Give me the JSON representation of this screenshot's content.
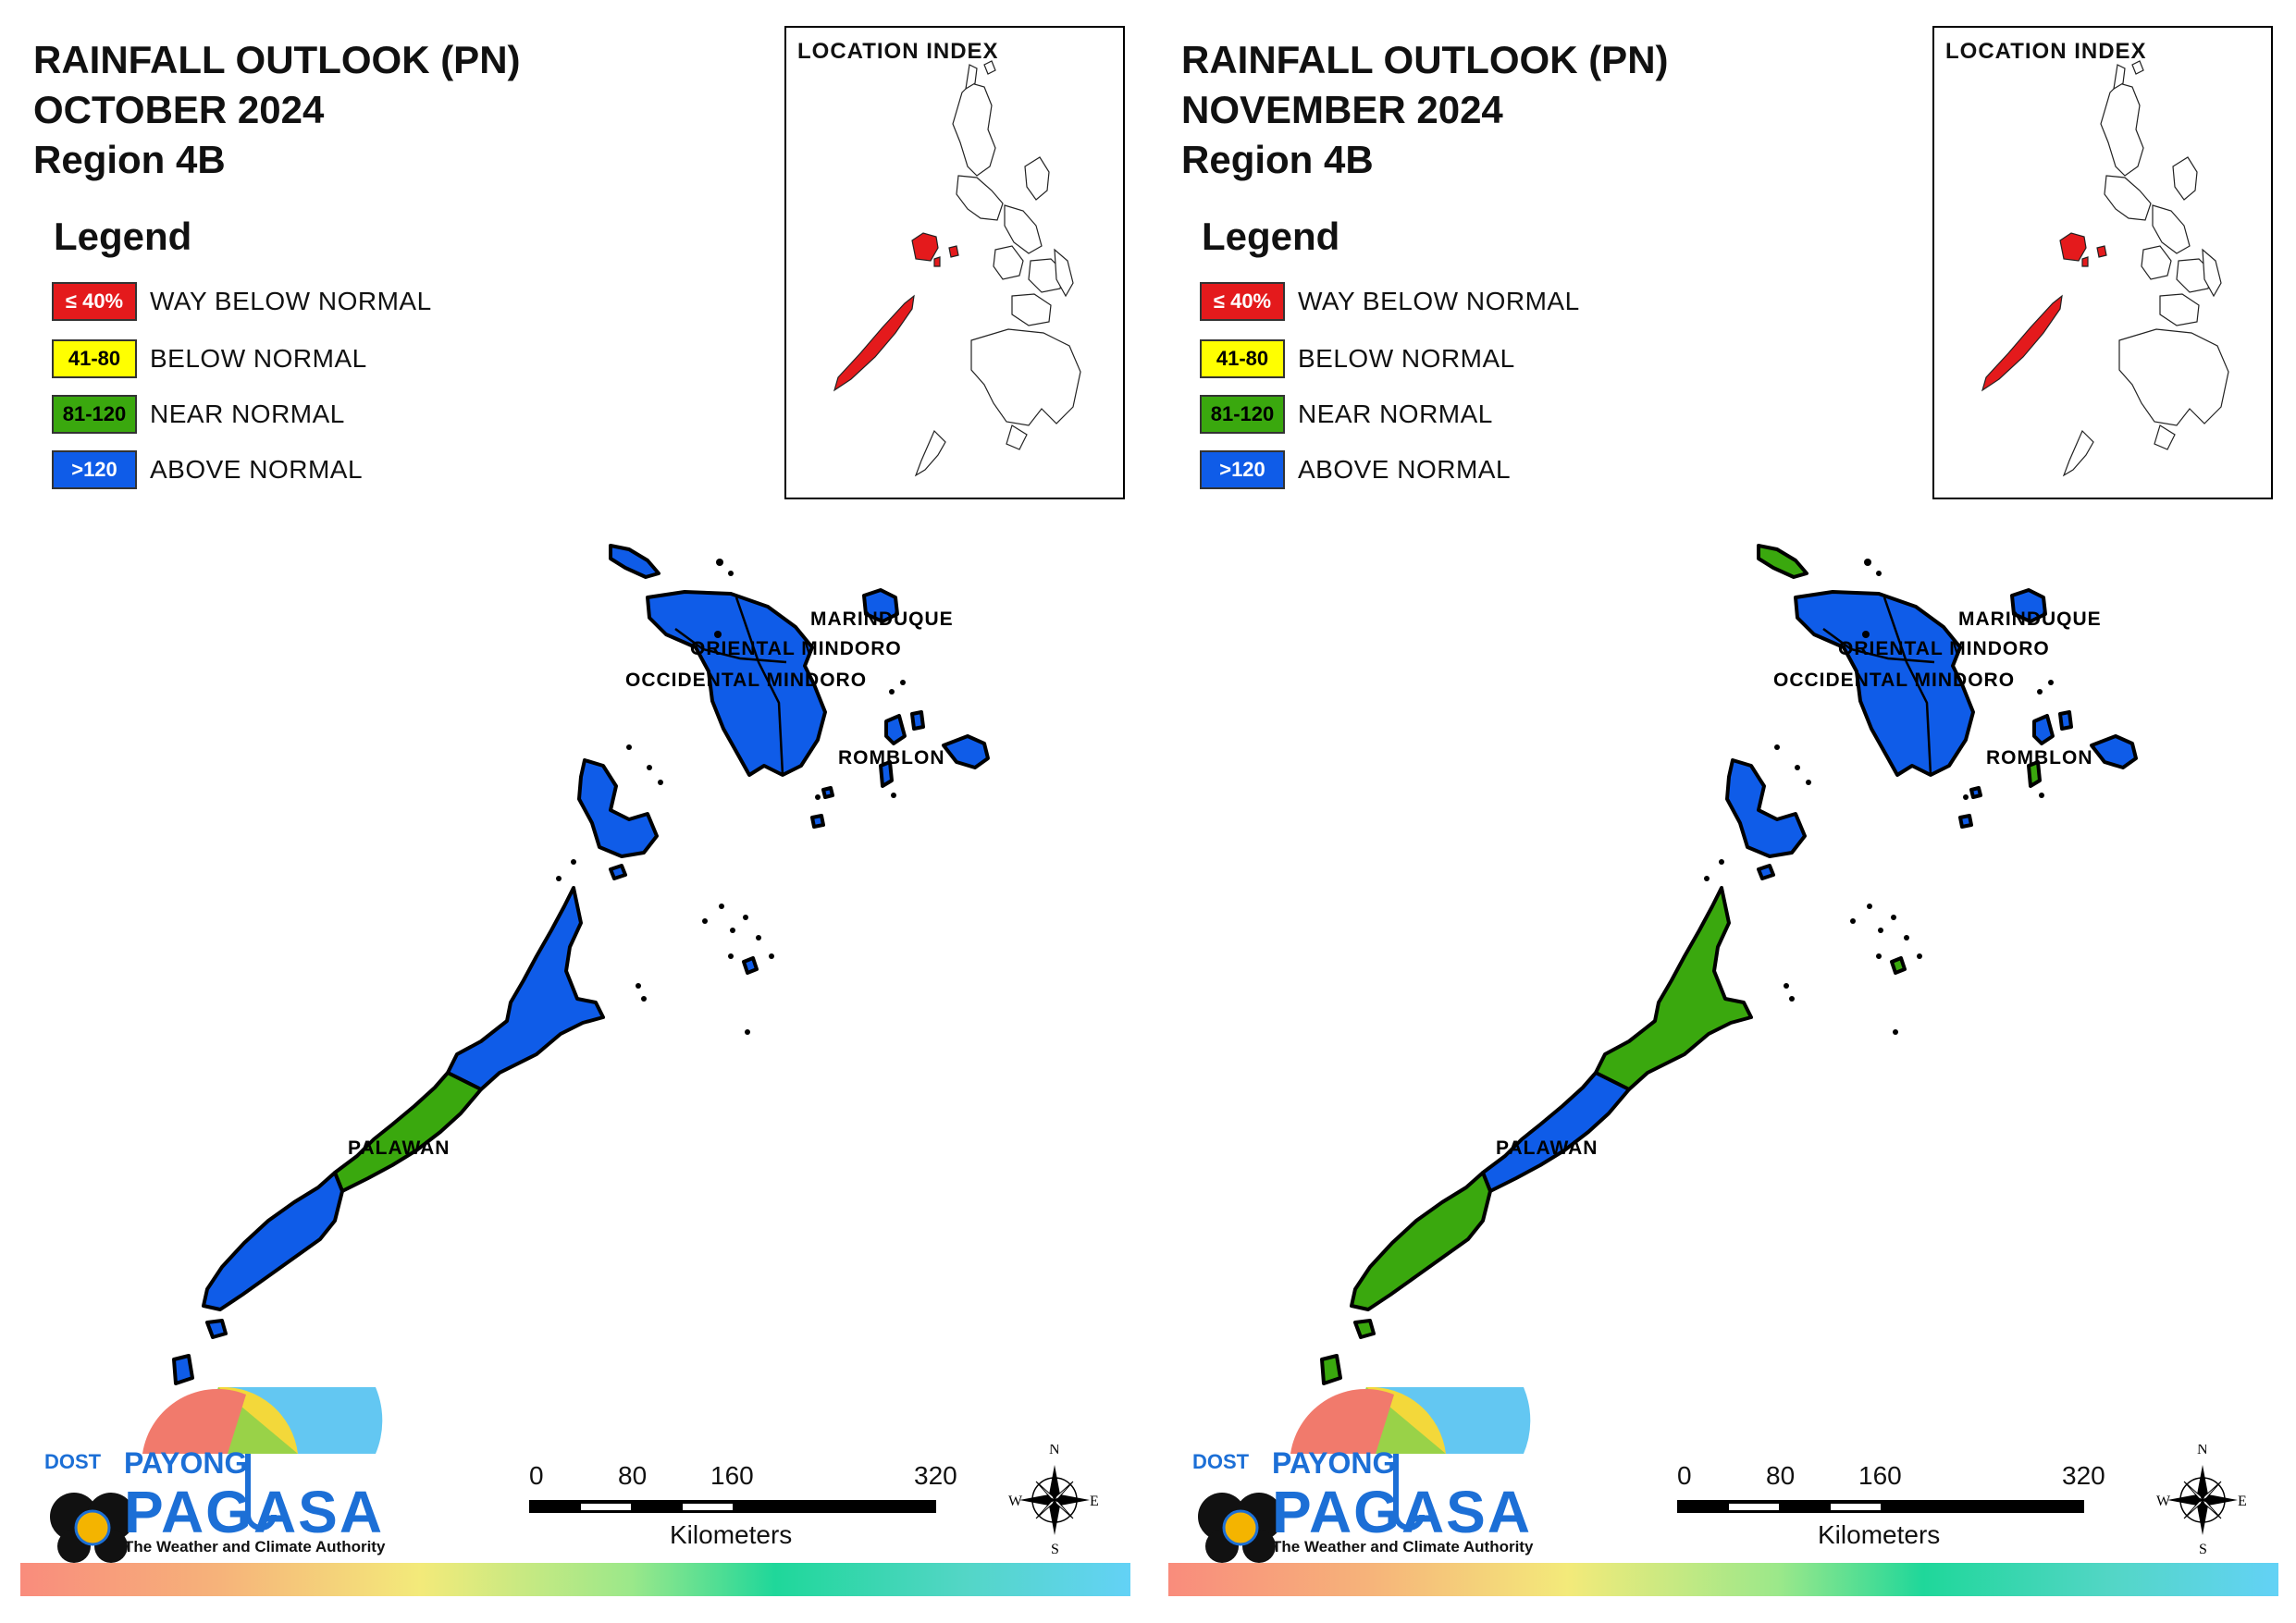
{
  "panels": [
    {
      "id": "october",
      "title_line1": "RAINFALL OUTLOOK (PN)",
      "title_line2": "OCTOBER 2024",
      "title_line3": "Region 4B",
      "legend_title": "Legend",
      "legend": [
        {
          "swatch": "≤ 40%",
          "label": "WAY BELOW NORMAL",
          "color": "#e41a1c",
          "text_color": "#ffffff"
        },
        {
          "swatch": "41-80",
          "label": "BELOW NORMAL",
          "color": "#ffff00",
          "text_color": "#000000"
        },
        {
          "swatch": "81-120",
          "label": "NEAR NORMAL",
          "color": "#3aa80e",
          "text_color": "#000000"
        },
        {
          "swatch": ">120",
          "label": "ABOVE NORMAL",
          "color": "#0f5ce8",
          "text_color": "#ffffff"
        }
      ],
      "location_index_title": "LOCATION INDEX",
      "province_labels": {
        "marinduque": "MARINDUQUE",
        "oriental_mindoro": "ORIENTAL MINDORO",
        "occidental_mindoro": "OCCIDENTAL MINDORO",
        "romblon": "ROMBLON",
        "palawan": "PALAWAN"
      },
      "province_colors": {
        "mindoro": "#0f5ce8",
        "marinduque": "#0f5ce8",
        "romblon": "#0f5ce8",
        "calamian": "#0f5ce8",
        "palawan_north": "#0f5ce8",
        "palawan_mid": "#3aa80e",
        "palawan_south": "#0f5ce8",
        "lubang": "#0f5ce8"
      }
    },
    {
      "id": "november",
      "title_line1": "RAINFALL OUTLOOK (PN)",
      "title_line2": "NOVEMBER 2024",
      "title_line3": "Region 4B",
      "legend_title": "Legend",
      "legend": [
        {
          "swatch": "≤ 40%",
          "label": "WAY BELOW NORMAL",
          "color": "#e41a1c",
          "text_color": "#ffffff"
        },
        {
          "swatch": "41-80",
          "label": "BELOW NORMAL",
          "color": "#ffff00",
          "text_color": "#000000"
        },
        {
          "swatch": "81-120",
          "label": "NEAR NORMAL",
          "color": "#3aa80e",
          "text_color": "#000000"
        },
        {
          "swatch": ">120",
          "label": "ABOVE NORMAL",
          "color": "#0f5ce8",
          "text_color": "#ffffff"
        }
      ],
      "location_index_title": "LOCATION INDEX",
      "province_labels": {
        "marinduque": "MARINDUQUE",
        "oriental_mindoro": "ORIENTAL MINDORO",
        "occidental_mindoro": "OCCIDENTAL MINDORO",
        "romblon": "ROMBLON",
        "palawan": "PALAWAN"
      },
      "province_colors": {
        "mindoro": "#0f5ce8",
        "marinduque": "#0f5ce8",
        "romblon": "#0f5ce8",
        "calamian": "#0f5ce8",
        "palawan_north": "#3aa80e",
        "palawan_mid": "#0f5ce8",
        "palawan_south": "#3aa80e",
        "lubang": "#3aa80e"
      }
    }
  ],
  "scale_bar": {
    "ticks": [
      "0",
      "80",
      "160",
      "320"
    ],
    "unit": "Kilometers"
  },
  "compass": {
    "n": "N",
    "s": "S",
    "e": "E",
    "w": "W"
  },
  "logo": {
    "dost": "DOST",
    "payong": "PAYONG",
    "pagasa": "PAGASA",
    "tagline": "The Weather and Climate Authority"
  },
  "index_highlight_color": "#e41a1c"
}
